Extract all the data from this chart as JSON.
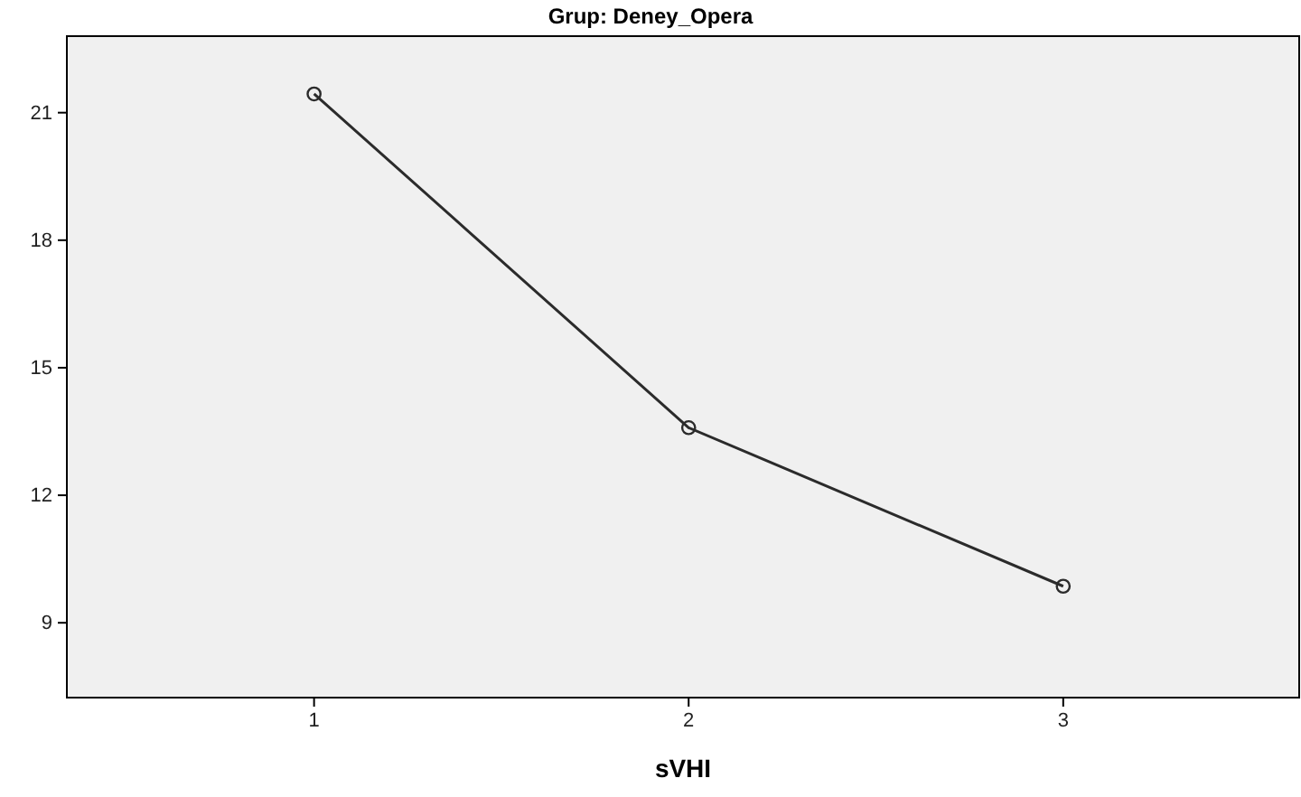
{
  "chart_data": {
    "type": "line",
    "title": "Grup: Deney_Opera",
    "xlabel": "sVHI",
    "x": [
      1,
      2,
      3
    ],
    "series": [
      {
        "color": "#2b2b2b",
        "values": [
          21.44,
          13.59,
          9.86
        ]
      }
    ],
    "xlim": [
      0.34,
      3.63
    ],
    "xticks": [
      1,
      2,
      3
    ],
    "ylim": [
      7.24,
      22.8
    ],
    "yticks": [
      9,
      12,
      15,
      18,
      21
    ],
    "marker": "circle",
    "line_style": "solid",
    "grid": false
  }
}
